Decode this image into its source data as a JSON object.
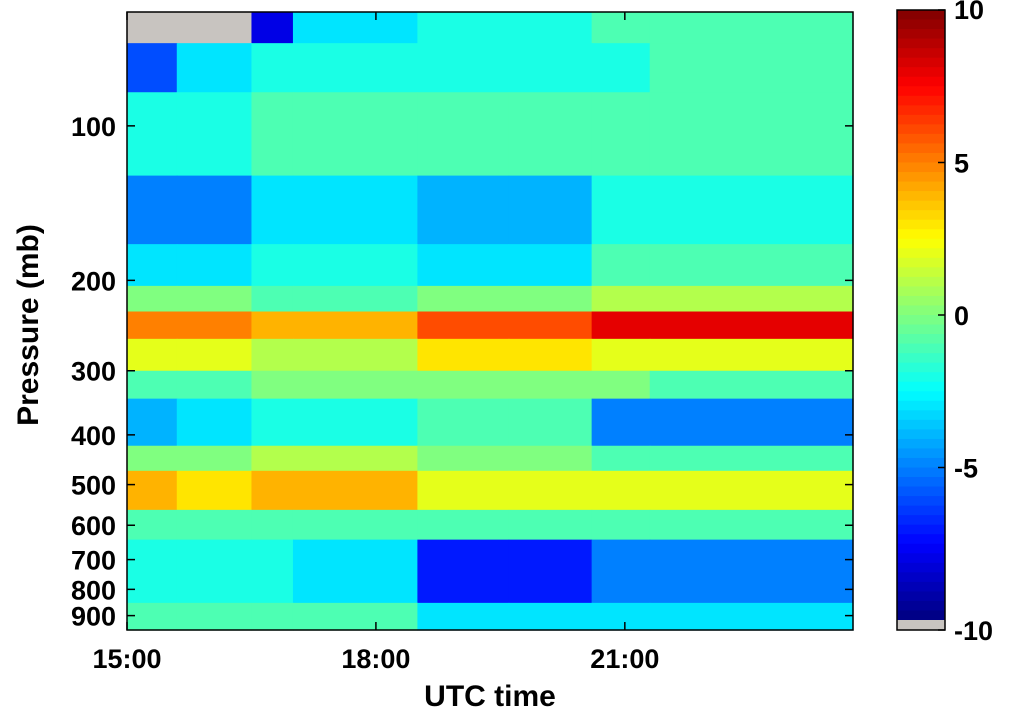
{
  "chart_data": {
    "type": "heatmap",
    "title": "",
    "xlabel": "UTC time",
    "ylabel": "Pressure (mb)",
    "x_range": [
      "15:00",
      "23:45"
    ],
    "x_ticks": [
      {
        "label": "15:00",
        "hour": 15
      },
      {
        "label": "18:00",
        "hour": 18
      },
      {
        "label": "21:00",
        "hour": 21
      }
    ],
    "y_scale": "log",
    "y_direction": "pressure increasing downward",
    "y_range_mb": [
      60,
      960
    ],
    "y_ticks": [
      100,
      200,
      300,
      400,
      500,
      600,
      700,
      800,
      900
    ],
    "y_tick_labels": [
      "100",
      "200",
      "300",
      "400",
      "500",
      "600",
      "700",
      "800",
      "900"
    ],
    "colorbar": {
      "range": [
        -10,
        10
      ],
      "colormap": "jet",
      "ticks": [
        10,
        5,
        0,
        -5,
        -10
      ],
      "tick_labels": [
        "10",
        "5",
        "0",
        "-5",
        "-10"
      ],
      "missing_color": "#c8c4c0"
    },
    "missing_data_color": "#c8c4c0",
    "layers": [
      {
        "p_top": 60,
        "p_bot": 69,
        "values": [
          null,
          null,
          -8,
          -3,
          -2,
          -2,
          -1,
          -1
        ]
      },
      {
        "p_top": 69,
        "p_bot": 86,
        "values": [
          -6,
          -3,
          -2,
          -2,
          -2,
          -2,
          -2,
          -1
        ]
      },
      {
        "p_top": 86,
        "p_bot": 125,
        "values": [
          -2,
          -2,
          -1,
          -1,
          -1,
          -1,
          -1,
          -1
        ]
      },
      {
        "p_top": 125,
        "p_bot": 170,
        "values": [
          -5,
          -5,
          -3,
          -3,
          -4,
          -4,
          -2,
          -2
        ]
      },
      {
        "p_top": 170,
        "p_bot": 205,
        "values": [
          -3,
          -3,
          -2,
          -2,
          -3,
          -3,
          -1,
          -1
        ]
      },
      {
        "p_top": 205,
        "p_bot": 230,
        "values": [
          0,
          0,
          -1,
          -1,
          0,
          0,
          1,
          1
        ]
      },
      {
        "p_top": 230,
        "p_bot": 260,
        "values": [
          5,
          5,
          4,
          4,
          6,
          6,
          8,
          8
        ]
      },
      {
        "p_top": 260,
        "p_bot": 300,
        "values": [
          2,
          2,
          1,
          1,
          3,
          3,
          2,
          2
        ]
      },
      {
        "p_top": 300,
        "p_bot": 340,
        "values": [
          -1,
          -1,
          0,
          0,
          0,
          0,
          0,
          -1
        ]
      },
      {
        "p_top": 340,
        "p_bot": 420,
        "values": [
          -4,
          -3,
          -2,
          -2,
          -1,
          -1,
          -5,
          -5
        ]
      },
      {
        "p_top": 420,
        "p_bot": 470,
        "values": [
          0,
          0,
          1,
          1,
          0,
          0,
          -1,
          -1
        ]
      },
      {
        "p_top": 470,
        "p_bot": 560,
        "values": [
          4,
          3,
          4,
          4,
          2,
          2,
          2,
          2
        ]
      },
      {
        "p_top": 560,
        "p_bot": 640,
        "values": [
          -1,
          -1,
          -1,
          -1,
          -1,
          -1,
          -1,
          -1
        ]
      },
      {
        "p_top": 640,
        "p_bot": 850,
        "values": [
          -2,
          -2,
          -2,
          -3,
          -7,
          -7,
          -5,
          -5
        ]
      },
      {
        "p_top": 850,
        "p_bot": 960,
        "values": [
          -1,
          -1,
          -1,
          -1,
          -3,
          -3,
          -3,
          -3
        ]
      }
    ],
    "time_blocks_hours": [
      15,
      15.6,
      16.5,
      17.0,
      18.5,
      19.6,
      20.6,
      21.3,
      23.75
    ],
    "grid": false,
    "legend": "colorbar-right"
  }
}
